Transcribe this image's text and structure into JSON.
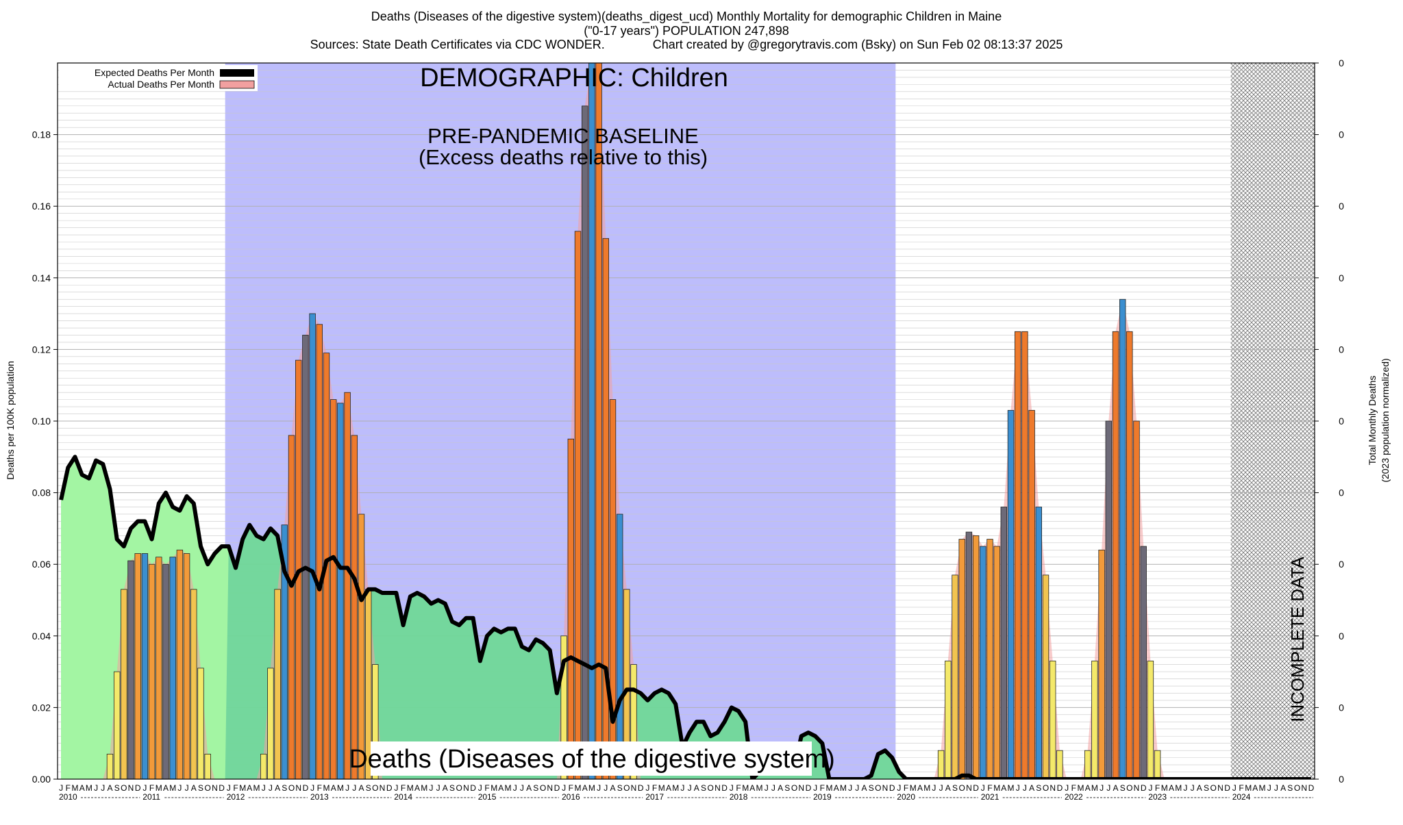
{
  "header": {
    "title_line1": "Deaths (Diseases of the digestive system)(deaths_digest_ucd) Monthly Mortality for demographic Children in Maine",
    "title_line2": "(\"0-17 years\") POPULATION 247,898",
    "title_line3": "Sources: State Death Certificates via CDC WONDER.              Chart created by @gregorytravis.com (Bsky) on Sun Feb 02 08:13:37 2025"
  },
  "annotations": {
    "demographic": "DEMOGRAPHIC: Children",
    "baseline_line1": "PRE-PANDEMIC BASELINE",
    "baseline_line2": "(Excess deaths relative to this)",
    "cause_label": "Deaths (Diseases of the digestive system)",
    "incomplete": "INCOMPLETE DATA"
  },
  "colors": {
    "baseline_region": "#bdbdfc",
    "expected_fill": "#70d898",
    "expected_fill_light": "#a3f5a3",
    "expected_line": "#000000",
    "actual_band": "#f2a0a0",
    "bar_palette": [
      "#f4e96a",
      "#f2c450",
      "#f29a3a",
      "#ee7a2c",
      "#3b8fd0",
      "#2f7fb8",
      "#6d6a78"
    ]
  },
  "chart_data": {
    "type": "bar",
    "title": "Deaths (Diseases of the digestive system)(deaths_digest_ucd) Monthly Mortality for demographic Children in Maine",
    "ylabel": "Deaths per 100K population",
    "y2label_line1": "Total Monthly Deaths",
    "y2label_line2": "(2023 population normalized)",
    "ylim": [
      0,
      0.2
    ],
    "y_ticks": [
      "0.00",
      "0.02",
      "0.04",
      "0.06",
      "0.08",
      "0.10",
      "0.12",
      "0.14",
      "0.16",
      "0.18"
    ],
    "y2_ticks": [
      "0",
      "0",
      "0",
      "0",
      "0",
      "0",
      "0",
      "0",
      "0",
      "0",
      "0"
    ],
    "x_start": "2010-01",
    "month_letters": [
      "J",
      "F",
      "M",
      "A",
      "M",
      "J",
      "J",
      "A",
      "S",
      "O",
      "N",
      "D"
    ],
    "years": [
      "2010",
      "2011",
      "2012",
      "2013",
      "2014",
      "2015",
      "2016",
      "2017",
      "2018",
      "2019",
      "2020",
      "2021",
      "2022",
      "2023",
      "2024"
    ],
    "baseline_period": [
      "2012-01",
      "2019-12"
    ],
    "incomplete_period": [
      "2024-01",
      "2024-12"
    ],
    "legend": [
      "Expected Deaths Per Month",
      "Actual Deaths Per Month"
    ],
    "grid": true,
    "legend_position": "top-left",
    "series": [
      {
        "name": "Actual Deaths Per Month",
        "values": [
          0,
          0,
          0,
          0,
          0,
          0,
          0,
          0.007,
          0.03,
          0.053,
          0.061,
          0.063,
          0.063,
          0.06,
          0.062,
          0.06,
          0.062,
          0.064,
          0.063,
          0.053,
          0.031,
          0.007,
          0,
          0,
          0,
          0,
          0,
          0,
          0,
          0.007,
          0.031,
          0.053,
          0.071,
          0.096,
          0.117,
          0.124,
          0.13,
          0.127,
          0.119,
          0.106,
          0.105,
          0.108,
          0.096,
          0.074,
          0.053,
          0.032,
          0,
          0,
          0,
          0,
          0,
          0,
          0,
          0,
          0,
          0,
          0,
          0,
          0,
          0,
          0,
          0,
          0,
          0,
          0,
          0,
          0,
          0,
          0,
          0,
          0,
          0,
          0.04,
          0.095,
          0.153,
          0.188,
          0.2,
          0.2,
          0.151,
          0.106,
          0.074,
          0.053,
          0.032,
          0,
          0,
          0,
          0,
          0,
          0,
          0,
          0,
          0,
          0,
          0,
          0,
          0,
          0,
          0,
          0,
          0,
          0,
          0,
          0,
          0,
          0,
          0,
          0,
          0,
          0,
          0,
          0,
          0,
          0,
          0,
          0,
          0,
          0,
          0,
          0,
          0,
          0,
          0,
          0,
          0,
          0,
          0,
          0.008,
          0.033,
          0.057,
          0.067,
          0.069,
          0.068,
          0.065,
          0.067,
          0.065,
          0.076,
          0.103,
          0.125,
          0.125,
          0.103,
          0.076,
          0.057,
          0.033,
          0.008,
          0,
          0,
          0,
          0.008,
          0.033,
          0.064,
          0.1,
          0.125,
          0.134,
          0.125,
          0.1,
          0.065,
          0.033,
          0.008,
          0,
          0,
          0,
          0,
          0,
          0,
          0,
          0,
          0,
          0,
          0,
          0,
          0,
          0,
          0,
          0,
          0,
          0,
          0,
          0,
          0,
          0,
          0,
          0,
          0,
          0,
          0,
          0,
          0,
          0,
          0,
          0,
          0,
          0
        ]
      },
      {
        "name": "Expected Deaths Per Month",
        "values": [
          0.078,
          0.087,
          0.09,
          0.085,
          0.084,
          0.089,
          0.088,
          0.081,
          0.067,
          0.065,
          0.07,
          0.072,
          0.072,
          0.067,
          0.077,
          0.08,
          0.076,
          0.075,
          0.079,
          0.077,
          0.065,
          0.06,
          0.063,
          0.065,
          0.065,
          0.059,
          0.067,
          0.071,
          0.068,
          0.067,
          0.07,
          0.068,
          0.058,
          0.054,
          0.058,
          0.059,
          0.058,
          0.053,
          0.061,
          0.062,
          0.059,
          0.059,
          0.056,
          0.05,
          0.053,
          0.053,
          0.052,
          0.052,
          0.052,
          0.043,
          0.051,
          0.052,
          0.051,
          0.049,
          0.05,
          0.049,
          0.044,
          0.043,
          0.045,
          0.045,
          0.033,
          0.04,
          0.042,
          0.041,
          0.042,
          0.042,
          0.037,
          0.036,
          0.039,
          0.038,
          0.036,
          0.024,
          0.033,
          0.034,
          0.033,
          0.032,
          0.031,
          0.032,
          0.031,
          0.016,
          0.022,
          0.025,
          0.025,
          0.024,
          0.022,
          0.024,
          0.025,
          0.024,
          0.021,
          0.009,
          0.013,
          0.016,
          0.016,
          0.012,
          0.013,
          0.016,
          0.02,
          0.019,
          0.016,
          0.0,
          0.002,
          0.007,
          0.008,
          0.008,
          0.006,
          0.003,
          0.012,
          0.013,
          0.012,
          0.01,
          0.0,
          0.0,
          0.0,
          0.0,
          0.0,
          0.0,
          0.001,
          0.007,
          0.008,
          0.006,
          0.002,
          0.0,
          0.0,
          0.0,
          0.0,
          0.0,
          0.0,
          0.0,
          0.0,
          0.001,
          0.001,
          0.0,
          0.0,
          0.0,
          0.0,
          0.0,
          0.0,
          0.0,
          0.0,
          0.0,
          0.0,
          0.0,
          0.0,
          0.0,
          0.0,
          0.0,
          0.0,
          0.0,
          0.0,
          0.0,
          0.0,
          0.0,
          0.0,
          0.0,
          0.0,
          0.0,
          0.0,
          0.0,
          0.0,
          0.0,
          0.0,
          0.0,
          0.0,
          0.0,
          0.0,
          0.0,
          0.0,
          0.0,
          0.0,
          0.0,
          0.0,
          0.0,
          0.0,
          0.0,
          0.0,
          0.0,
          0.0,
          0.0,
          0.0,
          0.0
        ]
      }
    ]
  }
}
